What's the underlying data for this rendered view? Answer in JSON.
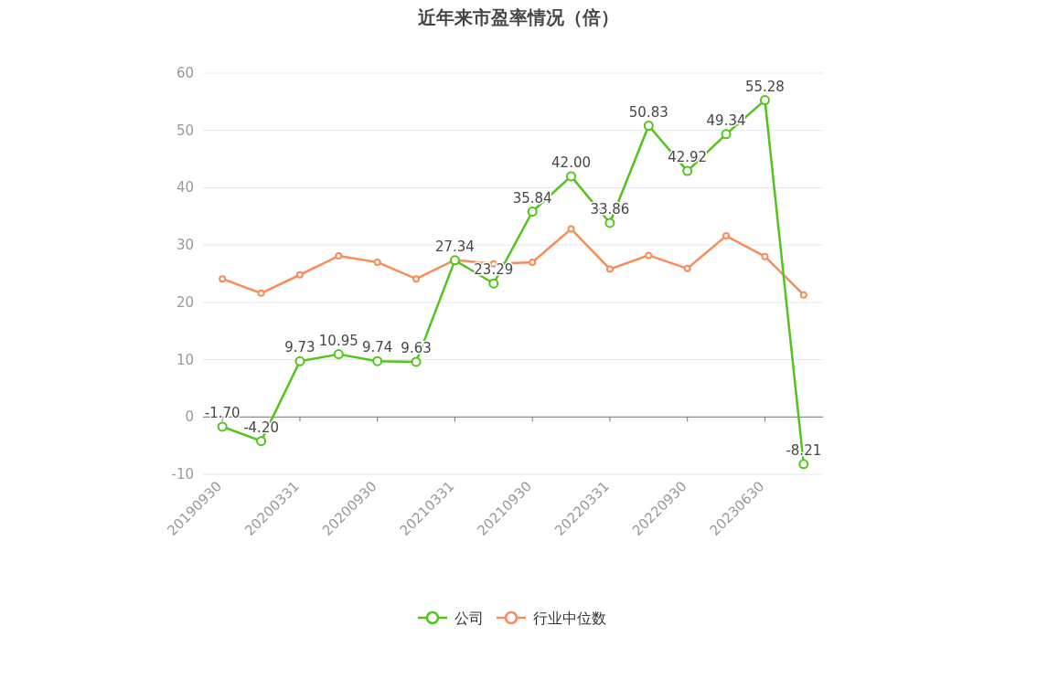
{
  "chart_data": {
    "type": "line",
    "title": "近年来市盈率情况（倍）",
    "categories": [
      "20190930",
      null,
      "20200331",
      null,
      "20200930",
      null,
      "20210331",
      null,
      "20210930",
      null,
      "20220331",
      null,
      "20220930",
      null,
      "20230630",
      null
    ],
    "series": [
      {
        "name": "公司",
        "color": "#52c41a",
        "values": [
          -1.7,
          -4.2,
          9.73,
          10.95,
          9.74,
          9.63,
          27.34,
          23.29,
          35.84,
          42.0,
          33.86,
          50.83,
          42.92,
          49.34,
          55.28,
          -8.21
        ],
        "value_labels": [
          "-1.70",
          "-4.20",
          "9.73",
          "10.95",
          "9.74",
          "9.63",
          "27.34",
          "23.29",
          "35.84",
          "42.00",
          "33.86",
          "50.83",
          "42.92",
          "49.34",
          "55.28",
          "-8.21"
        ]
      },
      {
        "name": "行业中位数",
        "color": "#fa8c5a",
        "values": [
          24.1,
          21.6,
          24.8,
          28.1,
          27.0,
          24.1,
          27.4,
          26.7,
          27.0,
          32.8,
          25.8,
          28.2,
          25.9,
          31.6,
          28.0,
          21.3
        ]
      }
    ],
    "ylim": [
      -10,
      60
    ],
    "yticks": [
      -10,
      0,
      10,
      20,
      30,
      40,
      50,
      60
    ],
    "grid": "y",
    "legend": "bottom",
    "marker": "circle",
    "line_style": "solid"
  }
}
